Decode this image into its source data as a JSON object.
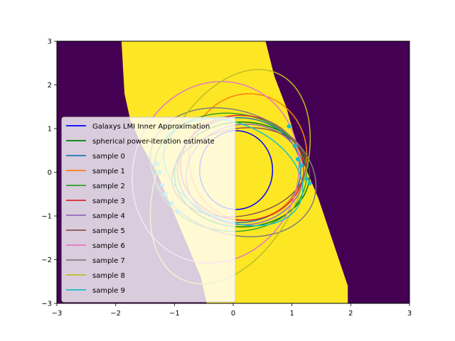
{
  "chart_data": {
    "type": "line",
    "title": "",
    "xlabel": "",
    "ylabel": "",
    "xlim": [
      -3,
      3
    ],
    "ylim": [
      -3,
      3
    ],
    "x_ticks": [
      -3,
      -2,
      -1,
      0,
      1,
      2,
      3
    ],
    "y_ticks": [
      -3,
      -2,
      -1,
      0,
      1,
      2,
      3
    ],
    "x_tick_labels": [
      "−3",
      "−2",
      "−1",
      "0",
      "1",
      "2",
      "3"
    ],
    "y_tick_labels": [
      "−3",
      "−2",
      "−1",
      "0",
      "1",
      "2",
      "3"
    ],
    "grid": false,
    "legend_position": "left",
    "background": {
      "feasible_color": "#fde725",
      "infeasible_color": "#440154",
      "feasible_region_left_boundary": [
        [
          -1.9,
          3.0
        ],
        [
          -1.85,
          1.8
        ],
        [
          -1.75,
          1.2
        ],
        [
          -1.55,
          0.6
        ],
        [
          -1.3,
          0.0
        ],
        [
          -1.05,
          -0.8
        ],
        [
          -0.8,
          -1.6
        ],
        [
          -0.55,
          -2.4
        ],
        [
          -0.45,
          -3.0
        ]
      ],
      "feasible_region_right_boundary": [
        [
          0.55,
          3.0
        ],
        [
          0.7,
          2.2
        ],
        [
          0.9,
          1.5
        ],
        [
          1.05,
          0.8
        ],
        [
          1.2,
          0.2
        ],
        [
          1.45,
          -0.6
        ],
        [
          1.7,
          -1.6
        ],
        [
          1.95,
          -2.6
        ],
        [
          1.95,
          -3.0
        ]
      ]
    },
    "series": [
      {
        "name": "Galaxys LMI Inner Approximation",
        "color": "#0000ff",
        "center": [
          0.05,
          0.05
        ],
        "radii": [
          0.62,
          0.9
        ],
        "angle_deg": 0
      },
      {
        "name": "spherical power-iteration estimate",
        "color": "#008000",
        "center": [
          0.15,
          -0.05
        ],
        "radii": [
          1.15,
          1.2
        ],
        "angle_deg": 0
      },
      {
        "name": "sample 0",
        "color": "#1f77b4",
        "center": [
          0.1,
          0.05
        ],
        "radii": [
          1.05,
          1.2
        ],
        "angle_deg": 0
      },
      {
        "name": "sample 1",
        "color": "#ff7f0e",
        "center": [
          0.25,
          0.35
        ],
        "radii": [
          1.0,
          1.45
        ],
        "angle_deg": -10
      },
      {
        "name": "sample 2",
        "color": "#2ca02c",
        "center": [
          -0.05,
          0.0
        ],
        "radii": [
          1.3,
          1.35
        ],
        "angle_deg": -5
      },
      {
        "name": "sample 3",
        "color": "#d62728",
        "center": [
          0.15,
          0.1
        ],
        "radii": [
          1.05,
          1.2
        ],
        "angle_deg": -5
      },
      {
        "name": "sample 4",
        "color": "#9467bd",
        "center": [
          0.2,
          -0.05
        ],
        "radii": [
          1.0,
          1.15
        ],
        "angle_deg": 5
      },
      {
        "name": "sample 5",
        "color": "#8c564b",
        "center": [
          0.1,
          0.0
        ],
        "radii": [
          1.15,
          1.0
        ],
        "angle_deg": 10
      },
      {
        "name": "sample 6",
        "color": "#e377c2",
        "center": [
          -0.3,
          0.0
        ],
        "radii": [
          1.4,
          2.1
        ],
        "angle_deg": -20
      },
      {
        "name": "sample 7",
        "color": "#7f7f7f",
        "center": [
          0.0,
          0.0
        ],
        "radii": [
          1.45,
          1.4
        ],
        "angle_deg": -20
      },
      {
        "name": "sample 8",
        "color": "#bcbd22",
        "center": [
          -0.05,
          -0.1
        ],
        "radii": [
          1.2,
          2.6
        ],
        "angle_deg": -25
      },
      {
        "name": "sample 9",
        "color": "#17becf",
        "center": [
          0.0,
          0.0
        ],
        "radii": [
          1.25,
          1.1
        ],
        "angle_deg": -25
      }
    ],
    "marker_points": {
      "color": "#17becf",
      "points": [
        [
          0.95,
          1.05
        ],
        [
          1.05,
          0.6
        ],
        [
          1.1,
          0.3
        ],
        [
          1.15,
          0.15
        ],
        [
          1.25,
          -0.15
        ],
        [
          1.3,
          -0.25
        ],
        [
          -1.3,
          0.2
        ],
        [
          -1.25,
          0.0
        ],
        [
          -1.2,
          -0.3
        ],
        [
          -1.15,
          -0.5
        ],
        [
          -1.05,
          -0.7
        ],
        [
          -0.95,
          -0.9
        ]
      ]
    }
  }
}
